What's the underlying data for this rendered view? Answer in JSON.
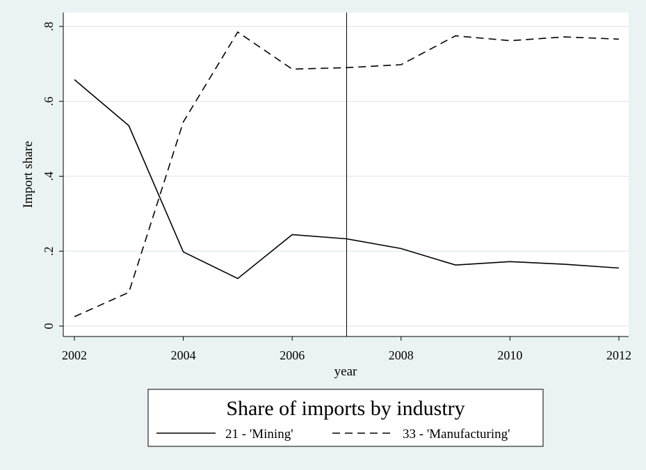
{
  "chart_data": {
    "type": "line",
    "xlabel": "year",
    "ylabel": "Import share",
    "x": [
      2002,
      2003,
      2004,
      2005,
      2006,
      2007,
      2008,
      2009,
      2010,
      2011,
      2012
    ],
    "x_ticks": [
      2002,
      2004,
      2006,
      2008,
      2010,
      2012
    ],
    "x_tick_labels": [
      "2002",
      "2004",
      "2006",
      "2008",
      "2010",
      "2012"
    ],
    "xlim": [
      2002,
      2012
    ],
    "y_ticks": [
      0,
      0.2,
      0.4,
      0.6,
      0.8
    ],
    "y_tick_labels": [
      "0",
      ".2",
      ".4",
      ".6",
      ".8"
    ],
    "ylim": [
      0,
      0.8
    ],
    "grid": true,
    "vertical_reference_line": 2007,
    "legend": {
      "title": "Share of imports by industry",
      "placement": "bottom"
    },
    "series": [
      {
        "name": "21 - 'Mining'",
        "style": "solid",
        "color": "#000000",
        "values": [
          0.658,
          0.535,
          0.198,
          0.127,
          0.244,
          0.233,
          0.207,
          0.163,
          0.172,
          0.165,
          0.155
        ]
      },
      {
        "name": "33 - 'Manufacturing'",
        "style": "dashed",
        "color": "#000000",
        "values": [
          0.025,
          0.09,
          0.545,
          0.785,
          0.686,
          0.69,
          0.698,
          0.775,
          0.762,
          0.772,
          0.766
        ]
      }
    ]
  },
  "colors": {
    "background": "#eaf2f3",
    "plot_background": "#ffffff",
    "grid": "#e6ebed",
    "line": "#000000"
  }
}
